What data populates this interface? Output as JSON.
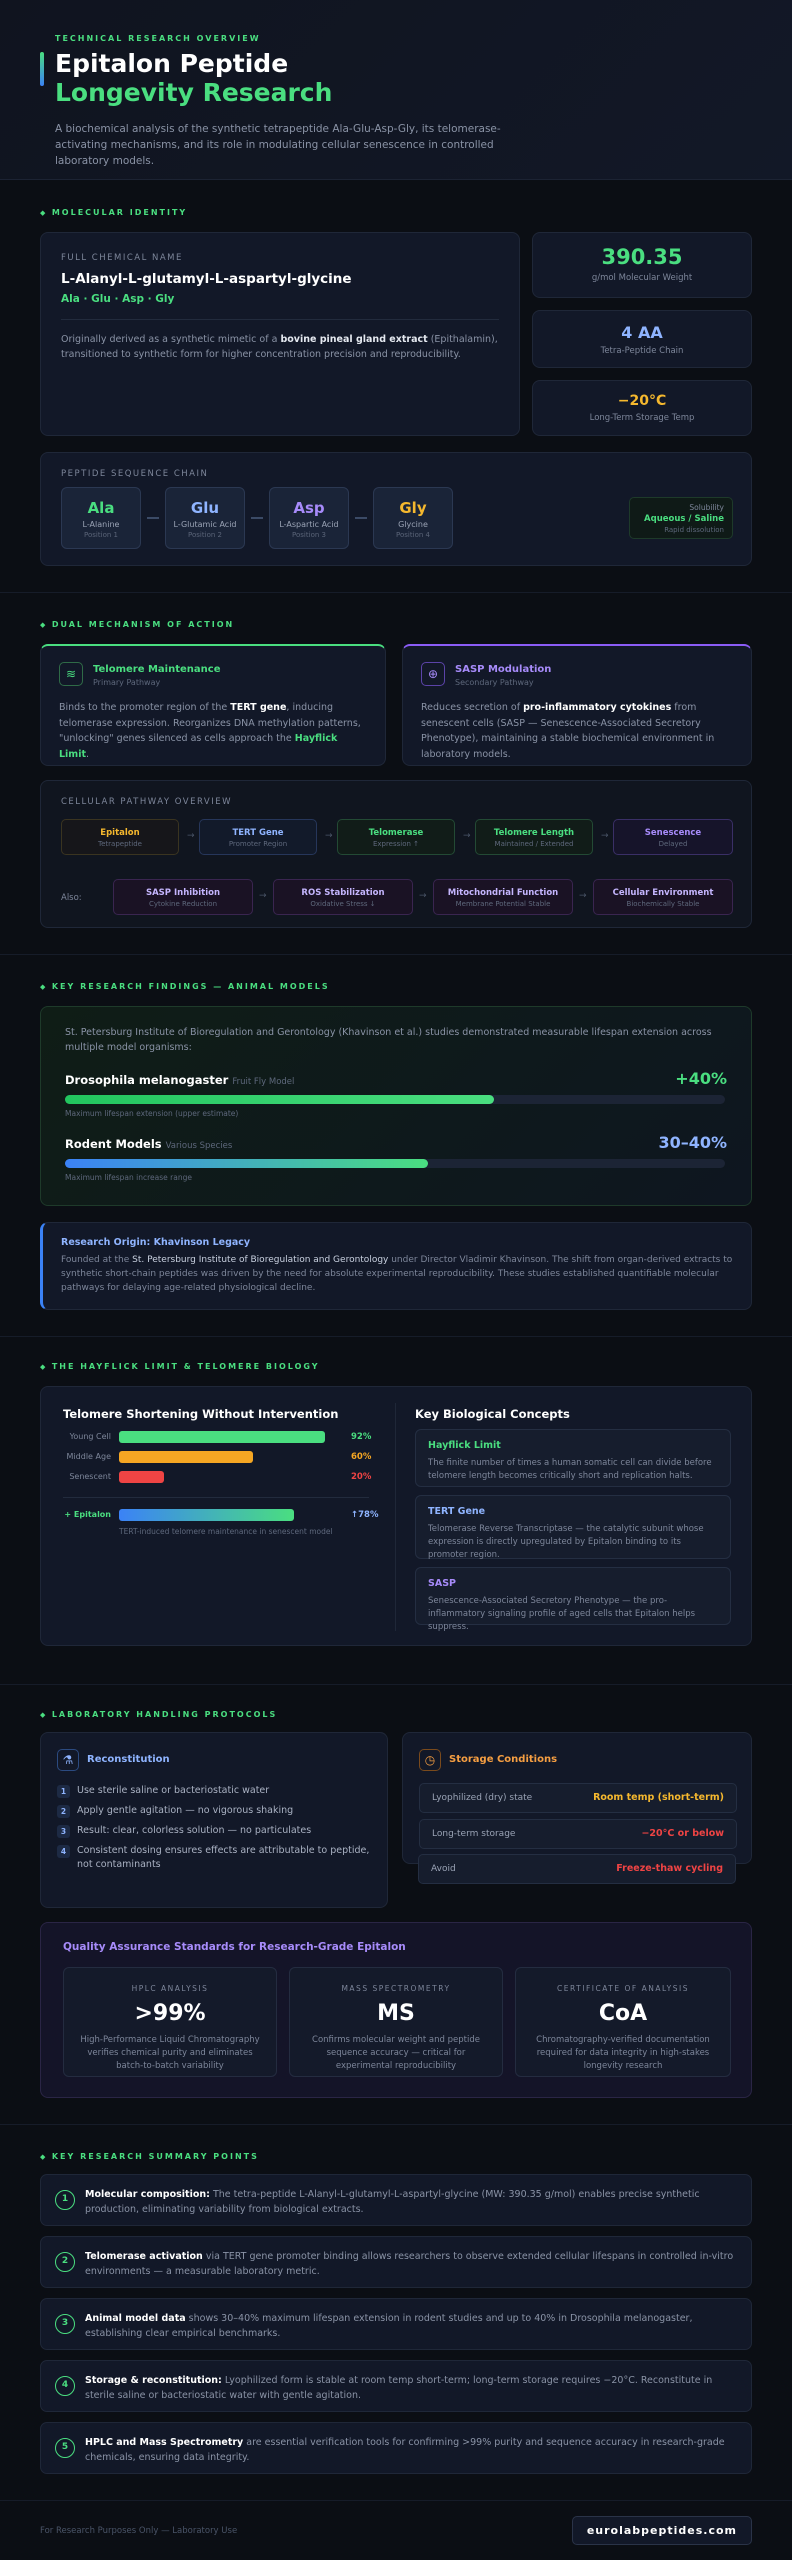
{
  "hero": {
    "overline": "TECHNICAL RESEARCH OVERVIEW",
    "title_line1": "Epitalon Peptide",
    "title_line2": "Longevity Research",
    "description": "A biochemical analysis of the synthetic tetrapeptide Ala-Glu-Asp-Gly, its telomerase-activating mechanisms, and its role in modulating cellular senescence in controlled laboratory models."
  },
  "molecular": {
    "section_label": "MOLECULAR IDENTITY",
    "name_label": "FULL CHEMICAL NAME",
    "name": "L-Alanyl-L-glutamyl-L-aspartyl-glycine",
    "sequence": "Ala · Glu · Asp · Gly",
    "desc_pre": "Originally derived as a synthetic mimetic of a ",
    "desc_bold": "bovine pineal gland extract",
    "desc_post": " (Epithalamin), transitioned to synthetic form for higher concentration precision and reproducibility.",
    "stats": [
      {
        "value": "390.35",
        "label": "g/mol Molecular Weight",
        "color": "#4ade80"
      },
      {
        "value": "4 AA",
        "label": "Tetra-Peptide Chain",
        "color": "#8fb4ff"
      },
      {
        "value": "−20°C",
        "label": "Long-Term Storage Temp",
        "color": "#f5b82e"
      }
    ],
    "chain_label": "PEPTIDE SEQUENCE CHAIN",
    "chain": [
      {
        "abbr": "Ala",
        "full": "L-Alanine",
        "pos": "Position 1",
        "color": "#4ade80"
      },
      {
        "abbr": "Glu",
        "full": "L-Glutamic Acid",
        "pos": "Position 2",
        "color": "#8fb4ff"
      },
      {
        "abbr": "Asp",
        "full": "L-Aspartic Acid",
        "pos": "Position 3",
        "color": "#a78bfa"
      },
      {
        "abbr": "Gly",
        "full": "Glycine",
        "pos": "Position 4",
        "color": "#f5b82e"
      }
    ],
    "solubility": {
      "label": "Solubility",
      "value": "Aqueous / Saline",
      "note": "Rapid dissolution"
    }
  },
  "mechanism": {
    "section_label": "DUAL MECHANISM OF ACTION",
    "primary": {
      "title": "Telomere Maintenance",
      "subtitle": "Primary Pathway",
      "icon": "layers-icon",
      "t1": "Binds to the promoter region of the ",
      "b1": "TERT gene",
      "t2": ", inducing telomerase expression. Reorganizes DNA methylation patterns, \"unlocking\" genes silenced as cells approach the ",
      "b2": "Hayflick Limit",
      "t3": "."
    },
    "secondary": {
      "title": "SASP Modulation",
      "subtitle": "Secondary Pathway",
      "icon": "plus-circle-icon",
      "t1": "Reduces secretion of ",
      "b1": "pro-inflammatory cytokines",
      "t2": " from senescent cells (SASP — Senescence-Associated Secretory Phenotype), maintaining a stable biochemical environment in laboratory models."
    },
    "pathway_label": "CELLULAR PATHWAY OVERVIEW",
    "pathway_main": [
      {
        "title": "Epitalon",
        "sub": "Tetrapeptide",
        "color": "#f5b82e"
      },
      {
        "title": "TERT Gene",
        "sub": "Promoter Region",
        "color": "#8fb4ff"
      },
      {
        "title": "Telomerase",
        "sub": "Expression ↑",
        "color": "#4ade80"
      },
      {
        "title": "Telomere Length",
        "sub": "Maintained / Extended",
        "color": "#4ade80"
      },
      {
        "title": "Senescence",
        "sub": "Delayed",
        "color": "#a78bfa"
      }
    ],
    "also_label": "Also:",
    "pathway_also": [
      {
        "title": "SASP Inhibition",
        "sub": "Cytokine Reduction"
      },
      {
        "title": "ROS Stabilization",
        "sub": "Oxidative Stress ↓"
      },
      {
        "title": "Mitochondrial Function",
        "sub": "Membrane Potential Stable"
      },
      {
        "title": "Cellular Environment",
        "sub": "Biochemically Stable"
      }
    ]
  },
  "findings": {
    "section_label": "KEY RESEARCH FINDINGS — ANIMAL MODELS",
    "intro": "St. Petersburg Institute of Bioregulation and Gerontology (Khavinson et al.) studies demonstrated measurable lifespan extension across multiple model organisms:",
    "models": [
      {
        "name": "Drosophila melanogaster",
        "tag": "Fruit Fly Model",
        "value": "+40%",
        "note": "Maximum lifespan extension (upper estimate)",
        "fraction": 0.65,
        "color": "#4ade80"
      },
      {
        "name": "Rodent Models",
        "tag": "Various Species",
        "value": "30–40%",
        "note": "Maximum lifespan increase range",
        "fraction": 0.55,
        "color": "#8fb4ff"
      }
    ],
    "origin_title": "Research Origin: Khavinson Legacy",
    "origin_t1": "Founded at the ",
    "origin_b1": "St. Petersburg Institute of Bioregulation and Gerontology",
    "origin_t2": " under Director Vladimir Khavinson. The shift from organ-derived extracts to synthetic short-chain peptides was driven by the need for absolute experimental reproducibility. These studies established quantifiable molecular pathways for delaying age-related physiological decline."
  },
  "hayflick": {
    "section_label": "THE HAYFLICK LIMIT & TELOMERE BIOLOGY",
    "left_title": "Telomere Shortening Without Intervention",
    "bars": [
      {
        "label": "Young Cell",
        "pct": "92%",
        "value": 92,
        "color": "#4ade80"
      },
      {
        "label": "Middle Age",
        "pct": "60%",
        "value": 60,
        "color": "#f5a623"
      },
      {
        "label": "Senescent",
        "pct": "20%",
        "value": 20,
        "color": "#ef4444"
      }
    ],
    "epi_label": "+ Epitalon",
    "epi_pct": "↑78%",
    "epi_value": 78,
    "epi_note": "TERT-induced telomere maintenance in senescent model",
    "right_title": "Key Biological Concepts",
    "concepts": [
      {
        "title": "Hayflick Limit",
        "desc": "The finite number of times a human somatic cell can divide before telomere length becomes critically short and replication halts.",
        "color": "#4ade80"
      },
      {
        "title": "TERT Gene",
        "desc": "Telomerase Reverse Transcriptase — the catalytic subunit whose expression is directly upregulated by Epitalon binding to its promoter region.",
        "color": "#8fb4ff"
      },
      {
        "title": "SASP",
        "desc": "Senescence-Associated Secretory Phenotype — the pro-inflammatory signaling profile of aged cells that Epitalon helps suppress.",
        "color": "#a78bfa"
      }
    ]
  },
  "protocols": {
    "section_label": "LABORATORY HANDLING PROTOCOLS",
    "recon_title": "Reconstitution",
    "recon_icon": "flask-icon",
    "steps": [
      "Use sterile saline or bacteriostatic water",
      "Apply gentle agitation — no vigorous shaking",
      "Result: clear, colorless solution — no particulates",
      "Consistent dosing ensures effects are attributable to peptide, not contaminants"
    ],
    "storage_title": "Storage Conditions",
    "storage_icon": "clock-icon",
    "storage": [
      {
        "label": "Lyophilized (dry) state",
        "value": "Room temp (short-term)",
        "color": "#f5b82e"
      },
      {
        "label": "Long-term storage",
        "value": "−20°C or below",
        "color": "#ef4444"
      },
      {
        "label": "Avoid",
        "value": "Freeze-thaw cycling",
        "color": "#ef4444"
      }
    ],
    "qa_title": "Quality Assurance Standards for Research-Grade Epitalon",
    "qa": [
      {
        "key": "HPLC ANALYSIS",
        "value": ">99%",
        "desc": "High-Performance Liquid Chromatography verifies chemical purity and eliminates batch-to-batch variability"
      },
      {
        "key": "MASS SPECTROMETRY",
        "value": "MS",
        "desc": "Confirms molecular weight and peptide sequence accuracy — critical for experimental reproducibility"
      },
      {
        "key": "CERTIFICATE OF ANALYSIS",
        "value": "CoA",
        "desc": "Chromatography-verified documentation required for data integrity in high-stakes longevity research"
      }
    ]
  },
  "summary": {
    "section_label": "KEY RESEARCH SUMMARY POINTS",
    "points": [
      {
        "num": "1",
        "bold": "Molecular composition:",
        "text": " The tetra-peptide L-Alanyl-L-glutamyl-L-aspartyl-glycine (MW: 390.35 g/mol) enables precise synthetic production, eliminating variability from biological extracts."
      },
      {
        "num": "2",
        "bold": "Telomerase activation",
        "text": " via TERT gene promoter binding allows researchers to observe extended cellular lifespans in controlled in-vitro environments — a measurable laboratory metric."
      },
      {
        "num": "3",
        "bold": "Animal model data",
        "text": " shows 30–40% maximum lifespan extension in rodent studies and up to 40% in Drosophila melanogaster, establishing clear empirical benchmarks."
      },
      {
        "num": "4",
        "bold": "Storage & reconstitution:",
        "text": " Lyophilized form is stable at room temp short-term; long-term storage requires −20°C. Reconstitute in sterile saline or bacteriostatic water with gentle agitation."
      },
      {
        "num": "5",
        "bold": "HPLC and Mass Spectrometry",
        "text": " are essential verification tools for confirming >99% purity and sequence accuracy in research-grade chemicals, ensuring data integrity."
      }
    ]
  },
  "footer": {
    "note": "For Research Purposes Only — Laboratory Use",
    "brand": "eurolabpeptides.com"
  }
}
